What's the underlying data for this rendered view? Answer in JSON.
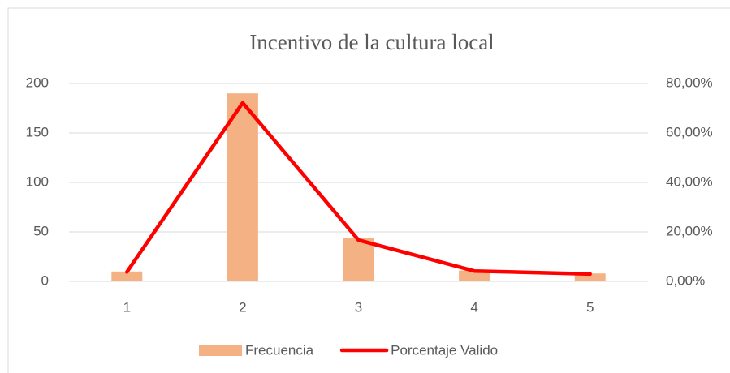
{
  "chart_data": {
    "type": "bar",
    "title": "Incentivo de la cultura local",
    "categories": [
      "1",
      "2",
      "3",
      "4",
      "5"
    ],
    "series": [
      {
        "name": "Frecuencia",
        "color": "#f4b183",
        "values": [
          10,
          190,
          44,
          11,
          8
        ]
      },
      {
        "name": "Porcentaje Valido",
        "color": "#ff0000",
        "type": "line",
        "axis": "y2",
        "values": [
          3.8,
          72.2,
          16.7,
          4.2,
          3.0
        ]
      }
    ],
    "ylim": [
      0,
      200
    ],
    "yticks": [
      0,
      50,
      100,
      150,
      200
    ],
    "y2lim": [
      0,
      80
    ],
    "y2ticks": [
      {
        "value": 0,
        "label": "0,00%"
      },
      {
        "value": 20,
        "label": "20,00%"
      },
      {
        "value": 40,
        "label": "40,00%"
      },
      {
        "value": 60,
        "label": "60,00%"
      },
      {
        "value": 80,
        "label": "80,00%"
      }
    ],
    "grid": true,
    "legend": "bottom"
  }
}
